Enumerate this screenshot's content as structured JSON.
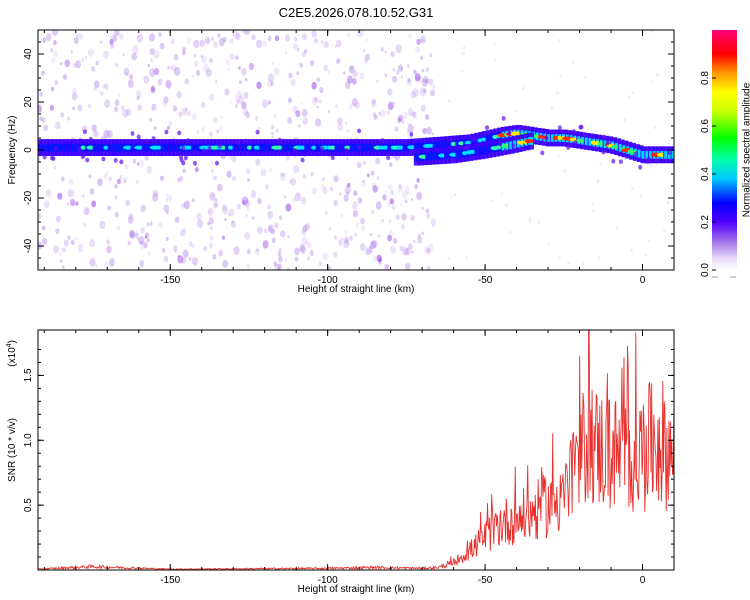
{
  "figure_title": "C2E5.2026.078.10.52.G31",
  "chart_data": [
    {
      "type": "heatmap",
      "title": "",
      "xlabel": "Height of straight line (km)",
      "ylabel": "Frequency (Hz)",
      "xlim": [
        -192,
        10
      ],
      "ylim": [
        -50,
        50
      ],
      "xticks": [
        -150,
        -100,
        -50,
        0
      ],
      "yticks": [
        -40,
        -20,
        0,
        20,
        40
      ],
      "xtick_labels": [
        "-150",
        "-100",
        "-50",
        "0"
      ],
      "ytick_labels": [
        "-40",
        "-20",
        "0",
        "20",
        "40"
      ],
      "colorbar": {
        "label": "Normalized spectral amplitude",
        "range": [
          0,
          1
        ],
        "ticks": [
          0.0,
          0.2,
          0.4,
          0.6,
          0.8
        ],
        "tick_labels": [
          "0.0",
          "0.2",
          "0.4",
          "0.6",
          "0.8"
        ],
        "colors": [
          "#ffffff",
          "#c8a6f0",
          "#8a2be2",
          "#0000ff",
          "#00ffff",
          "#00ff00",
          "#ffff00",
          "#ff8c00",
          "#ff0000",
          "#ff00aa"
        ]
      },
      "main_track": {
        "x": [
          -192,
          -170,
          -150,
          -130,
          -110,
          -90,
          -75,
          -65,
          -55,
          -45,
          -40,
          -35,
          -30,
          -25,
          -20,
          -15,
          -10,
          -5,
          0,
          5,
          10
        ],
        "y": [
          1,
          1,
          1,
          1,
          1,
          1,
          1,
          2,
          3,
          6,
          7,
          6,
          5,
          5,
          4,
          3,
          2,
          0,
          -2,
          -2,
          -2
        ]
      },
      "lower_branch": {
        "x": [
          -72,
          -60,
          -50,
          -42,
          -35
        ],
        "y": [
          -3,
          -2,
          0,
          2,
          4
        ]
      }
    },
    {
      "type": "line",
      "title": "",
      "xlabel": "Height of straight line (km)",
      "ylabel": "SNR (10 * v/v)",
      "y_scale_label": "(x10",
      "y_scale_exponent": "4",
      "xlim": [
        -192,
        10
      ],
      "ylim": [
        0,
        1.85
      ],
      "xticks": [
        -150,
        -100,
        -50,
        0
      ],
      "yticks": [
        0.5,
        1.0,
        1.5
      ],
      "xtick_labels": [
        "-150",
        "-100",
        "-50",
        "0"
      ],
      "ytick_labels": [
        "0.5",
        "1.0",
        "1.5"
      ],
      "series": [
        {
          "name": "SNR",
          "color": "#e8312e",
          "envelope_x": [
            -192,
            -175,
            -150,
            -100,
            -85,
            -70,
            -65,
            -60,
            -55,
            -50,
            -45,
            -40,
            -35,
            -30,
            -25,
            -20,
            -17,
            -15,
            -10,
            -5,
            0,
            5,
            10
          ],
          "envelope_y": [
            0.01,
            0.04,
            0.01,
            0.02,
            0.03,
            0.02,
            0.03,
            0.08,
            0.2,
            0.35,
            0.5,
            0.55,
            0.6,
            0.7,
            0.8,
            1.1,
            1.55,
            1.3,
            1.25,
            1.2,
            1.25,
            1.4,
            1.2
          ]
        }
      ]
    }
  ]
}
